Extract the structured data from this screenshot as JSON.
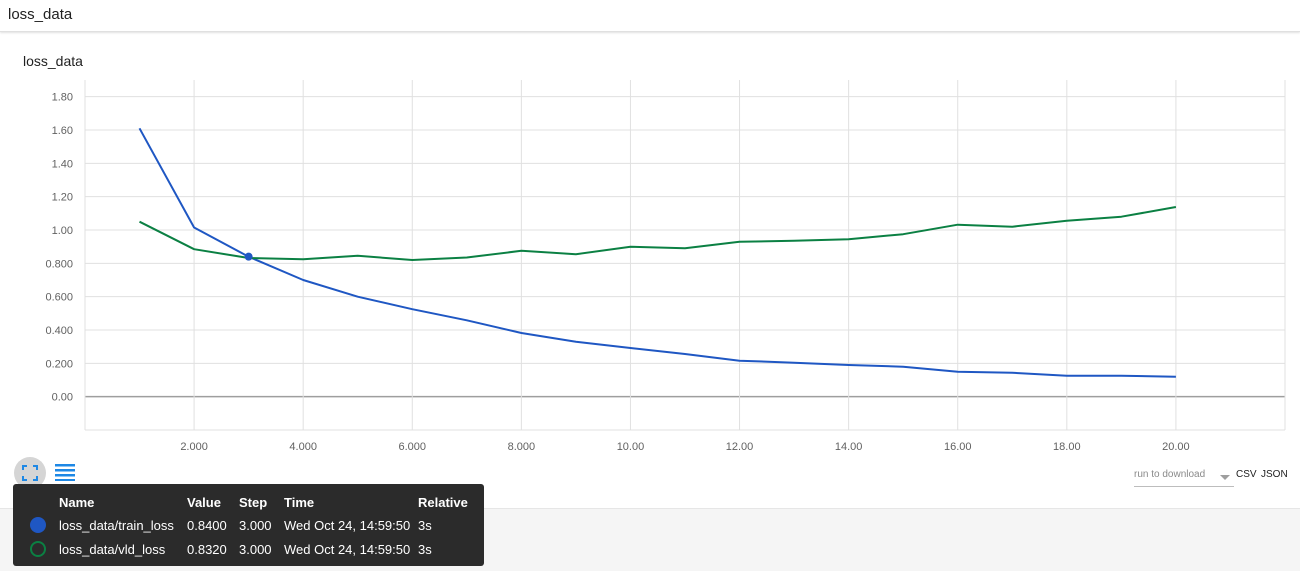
{
  "header": {
    "title": "loss_data"
  },
  "card": {
    "title": "loss_data"
  },
  "chart_data": {
    "type": "line",
    "title": "loss_data",
    "xlabel": "",
    "ylabel": "",
    "xlim": [
      0,
      22
    ],
    "ylim": [
      -0.2,
      1.9
    ],
    "x_ticks": [
      2,
      4,
      6,
      8,
      10,
      12,
      14,
      16,
      18,
      20
    ],
    "x_tick_labels": [
      "2.000",
      "4.000",
      "6.000",
      "8.000",
      "10.00",
      "12.00",
      "14.00",
      "16.00",
      "18.00",
      "20.00"
    ],
    "y_ticks": [
      0,
      0.2,
      0.4,
      0.6,
      0.8,
      1.0,
      1.2,
      1.4,
      1.6,
      1.8
    ],
    "y_tick_labels": [
      "0.00",
      "0.200",
      "0.400",
      "0.600",
      "0.800",
      "1.00",
      "1.20",
      "1.40",
      "1.60",
      "1.80"
    ],
    "grid": true,
    "x": [
      1,
      2,
      3,
      4,
      5,
      6,
      7,
      8,
      9,
      10,
      11,
      12,
      13,
      14,
      15,
      16,
      17,
      18,
      19,
      20
    ],
    "series": [
      {
        "name": "loss_data/train_loss",
        "color": "#1f57c3",
        "values": [
          1.61,
          1.015,
          0.84,
          0.7,
          0.6,
          0.525,
          0.458,
          0.382,
          0.33,
          0.292,
          0.256,
          0.216,
          0.204,
          0.19,
          0.18,
          0.15,
          0.143,
          0.126,
          0.126,
          0.12
        ]
      },
      {
        "name": "loss_data/vld_loss",
        "color": "#0b8043",
        "values": [
          1.05,
          0.885,
          0.832,
          0.825,
          0.845,
          0.82,
          0.835,
          0.875,
          0.855,
          0.9,
          0.89,
          0.93,
          0.935,
          0.945,
          0.975,
          1.032,
          1.02,
          1.055,
          1.08,
          1.138
        ]
      }
    ],
    "highlight": {
      "x": 3,
      "series": 0
    }
  },
  "controls": {
    "fit_icon": "fit-domain-icon",
    "lines_icon": "data-series-icon",
    "download_label": "run to download",
    "csv_label": "CSV",
    "json_label": "JSON"
  },
  "tooltip": {
    "headers": {
      "name": "Name",
      "value": "Value",
      "step": "Step",
      "time": "Time",
      "relative": "Relative"
    },
    "rows": [
      {
        "color": "#1f57c3",
        "filled": true,
        "name": "loss_data/train_loss",
        "value": "0.8400",
        "step": "3.000",
        "time": "Wed Oct 24, 14:59:50",
        "relative": "3s"
      },
      {
        "color": "#0b8043",
        "filled": false,
        "name": "loss_data/vld_loss",
        "value": "0.8320",
        "step": "3.000",
        "time": "Wed Oct 24, 14:59:50",
        "relative": "3s"
      }
    ]
  }
}
